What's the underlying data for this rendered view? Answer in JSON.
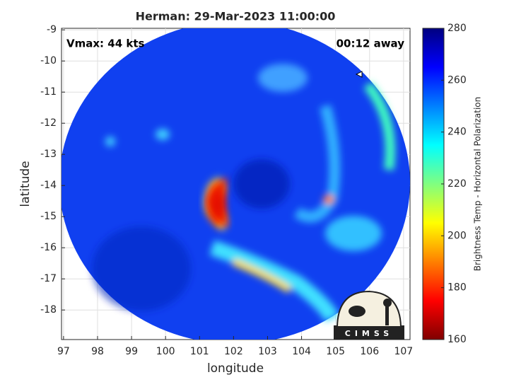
{
  "chart_data": {
    "type": "image-map",
    "title": "Herman: 29-Mar-2023 11:00:00",
    "annotations": [
      "Vmax: 44 kts",
      "00:12 away"
    ],
    "xlabel": "longitude",
    "ylabel": "latitude",
    "xlim": [
      96.94,
      107.19
    ],
    "xticks": [
      97,
      98,
      99,
      100,
      101,
      102,
      103,
      104,
      105,
      106,
      107
    ],
    "ylim": [
      -18.95,
      -8.95
    ],
    "yticks": [
      -18,
      -17,
      -16,
      -15,
      -14,
      -13,
      -12,
      -11,
      -10,
      -9
    ],
    "grid": true,
    "colorbar": {
      "label": "Brightness Temp - Horizontal Polarization",
      "lim": [
        160,
        280
      ],
      "ticks": [
        160,
        180,
        200,
        220,
        240,
        260,
        280
      ],
      "colormap": [
        "#800000",
        "#ff0000",
        "#ff8000",
        "#ffff00",
        "#80ff80",
        "#00ffff",
        "#0080ff",
        "#0000ff",
        "#000080"
      ]
    },
    "logo_text": "CIMSS"
  }
}
